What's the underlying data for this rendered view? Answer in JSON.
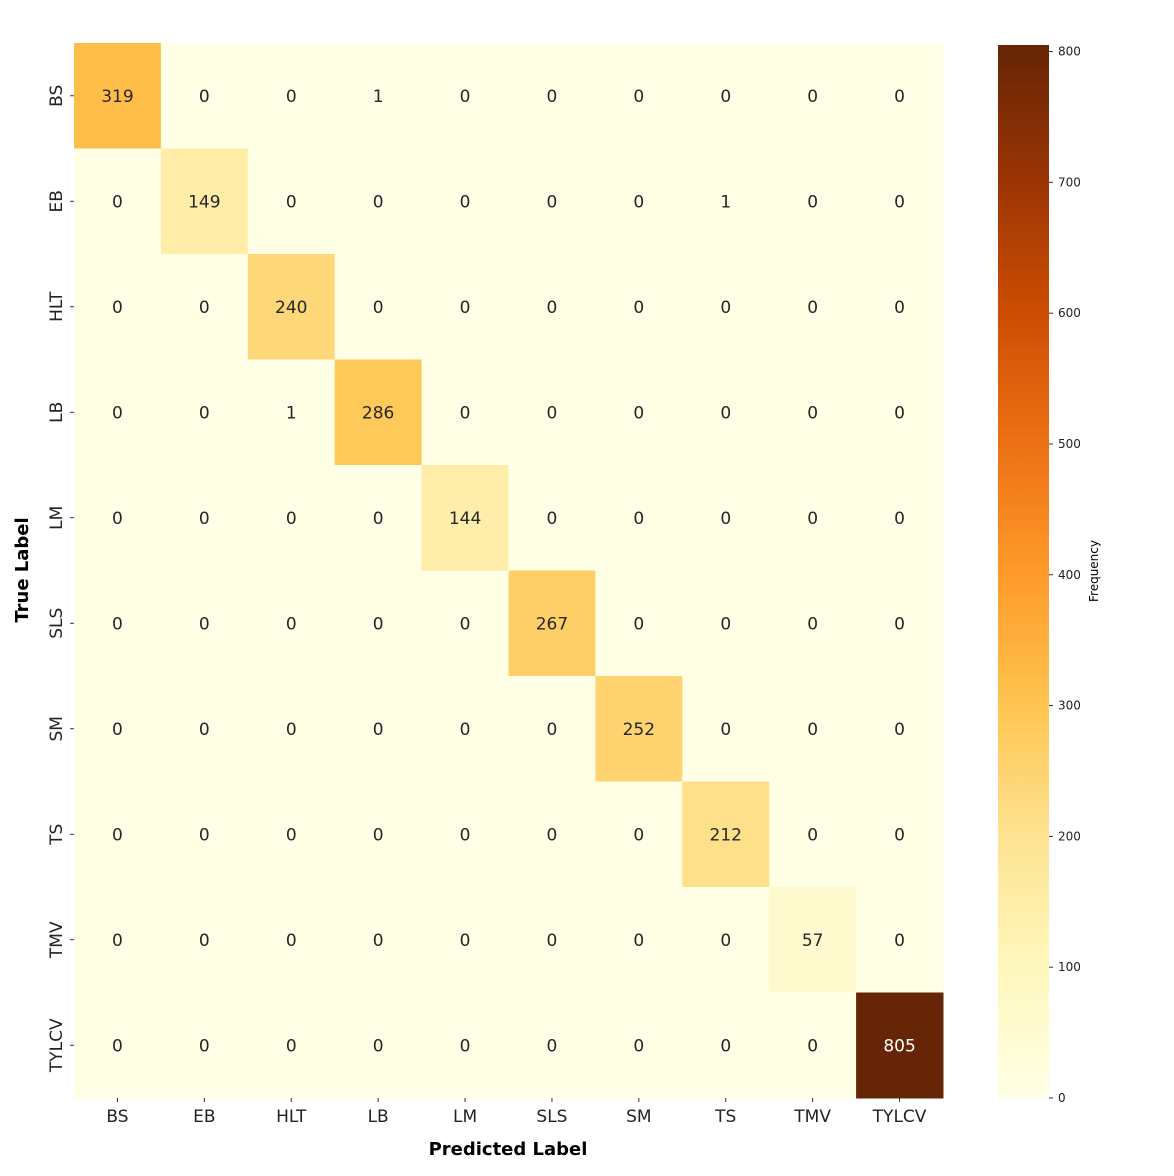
{
  "chart_data": {
    "type": "heatmap",
    "title": "",
    "xlabel": "Predicted Label",
    "ylabel": "True Label",
    "x_categories": [
      "BS",
      "EB",
      "HLT",
      "LB",
      "LM",
      "SLS",
      "SM",
      "TS",
      "TMV",
      "TYLCV"
    ],
    "y_categories": [
      "BS",
      "EB",
      "HLT",
      "LB",
      "LM",
      "SLS",
      "SM",
      "TS",
      "TMV",
      "TYLCV"
    ],
    "values": [
      [
        319,
        0,
        0,
        1,
        0,
        0,
        0,
        0,
        0,
        0
      ],
      [
        0,
        149,
        0,
        0,
        0,
        0,
        0,
        1,
        0,
        0
      ],
      [
        0,
        0,
        240,
        0,
        0,
        0,
        0,
        0,
        0,
        0
      ],
      [
        0,
        0,
        1,
        286,
        0,
        0,
        0,
        0,
        0,
        0
      ],
      [
        0,
        0,
        0,
        0,
        144,
        0,
        0,
        0,
        0,
        0
      ],
      [
        0,
        0,
        0,
        0,
        0,
        267,
        0,
        0,
        0,
        0
      ],
      [
        0,
        0,
        0,
        0,
        0,
        0,
        252,
        0,
        0,
        0
      ],
      [
        0,
        0,
        0,
        0,
        0,
        0,
        0,
        212,
        0,
        0
      ],
      [
        0,
        0,
        0,
        0,
        0,
        0,
        0,
        0,
        57,
        0
      ],
      [
        0,
        0,
        0,
        0,
        0,
        0,
        0,
        0,
        0,
        805
      ]
    ],
    "colorbar": {
      "label": "Frequency",
      "range": [
        0,
        805
      ],
      "ticks": [
        0,
        100,
        200,
        300,
        400,
        500,
        600,
        700,
        800
      ],
      "colormap": [
        "#ffffe5",
        "#fff7bc",
        "#fee391",
        "#fec44f",
        "#fe9929",
        "#ec7014",
        "#cc4c02",
        "#993404",
        "#662506"
      ]
    }
  }
}
